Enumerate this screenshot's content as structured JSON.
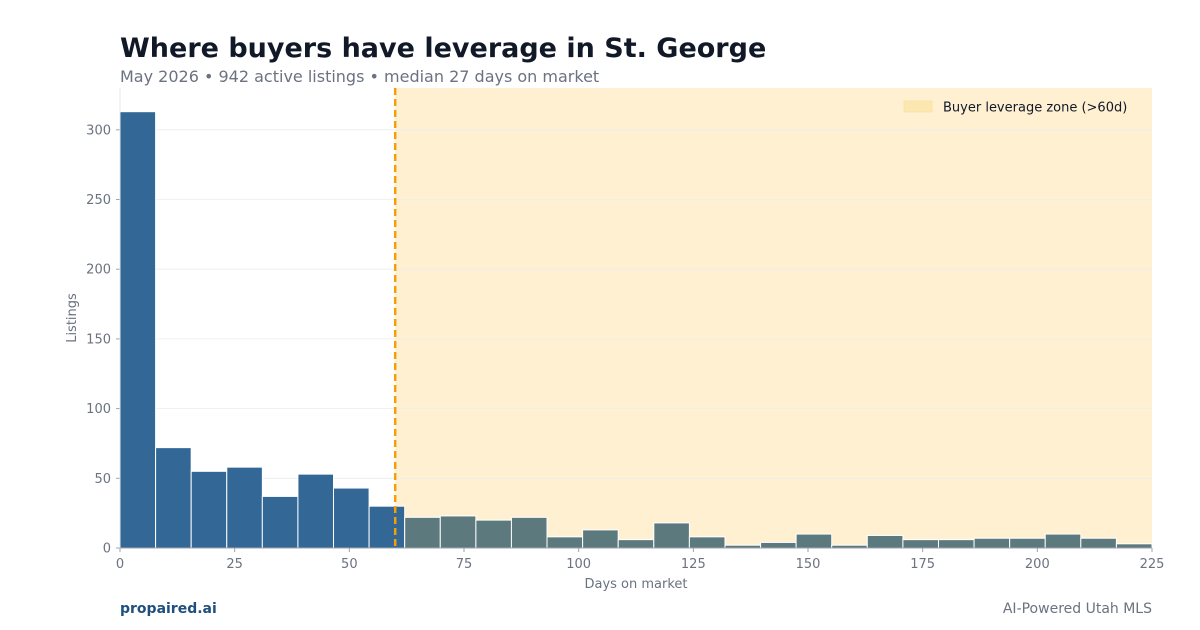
{
  "header": {
    "title": "Where buyers have leverage in St. George",
    "subtitle": "May 2026 • 942 active listings • median 27 days on market"
  },
  "footer": {
    "brand": "propaired.ai",
    "tagline": "AI-Powered Utah MLS"
  },
  "colors": {
    "bar_fresh": "#336896",
    "bar_leverage": "#5c7a7e",
    "zone_fill": "#fff0d2",
    "threshold_line": "#f59e0b",
    "gridline": "#ececec",
    "axis_text": "#6b7280"
  },
  "chart_data": {
    "type": "bar",
    "title": "Where buyers have leverage in St. George",
    "xlabel": "Days on market",
    "ylabel": "Listings",
    "xlim": [
      0,
      225
    ],
    "ylim": [
      0,
      330
    ],
    "bin_width": 7.76,
    "x_ticks": [
      0,
      25,
      50,
      75,
      100,
      125,
      150,
      175,
      200,
      225
    ],
    "y_ticks": [
      0,
      50,
      100,
      150,
      200,
      250,
      300
    ],
    "grid": true,
    "threshold": 60,
    "legend": {
      "label": "Buyer leverage zone (>60d)",
      "placement": "top-right"
    },
    "bins": [
      {
        "start": 0.0,
        "value": 313
      },
      {
        "start": 7.76,
        "value": 72
      },
      {
        "start": 15.52,
        "value": 55
      },
      {
        "start": 23.28,
        "value": 58
      },
      {
        "start": 31.03,
        "value": 37
      },
      {
        "start": 38.79,
        "value": 53
      },
      {
        "start": 46.55,
        "value": 43
      },
      {
        "start": 54.31,
        "value": 30
      },
      {
        "start": 62.07,
        "value": 22
      },
      {
        "start": 69.83,
        "value": 23
      },
      {
        "start": 77.59,
        "value": 20
      },
      {
        "start": 85.34,
        "value": 22
      },
      {
        "start": 93.1,
        "value": 8
      },
      {
        "start": 100.86,
        "value": 13
      },
      {
        "start": 108.62,
        "value": 6
      },
      {
        "start": 116.38,
        "value": 18
      },
      {
        "start": 124.14,
        "value": 8
      },
      {
        "start": 131.9,
        "value": 2
      },
      {
        "start": 139.66,
        "value": 4
      },
      {
        "start": 147.41,
        "value": 10
      },
      {
        "start": 155.17,
        "value": 2
      },
      {
        "start": 162.93,
        "value": 9
      },
      {
        "start": 170.69,
        "value": 6
      },
      {
        "start": 178.45,
        "value": 6
      },
      {
        "start": 186.21,
        "value": 7
      },
      {
        "start": 193.97,
        "value": 7
      },
      {
        "start": 201.72,
        "value": 10
      },
      {
        "start": 209.48,
        "value": 7
      },
      {
        "start": 217.24,
        "value": 3
      }
    ]
  }
}
